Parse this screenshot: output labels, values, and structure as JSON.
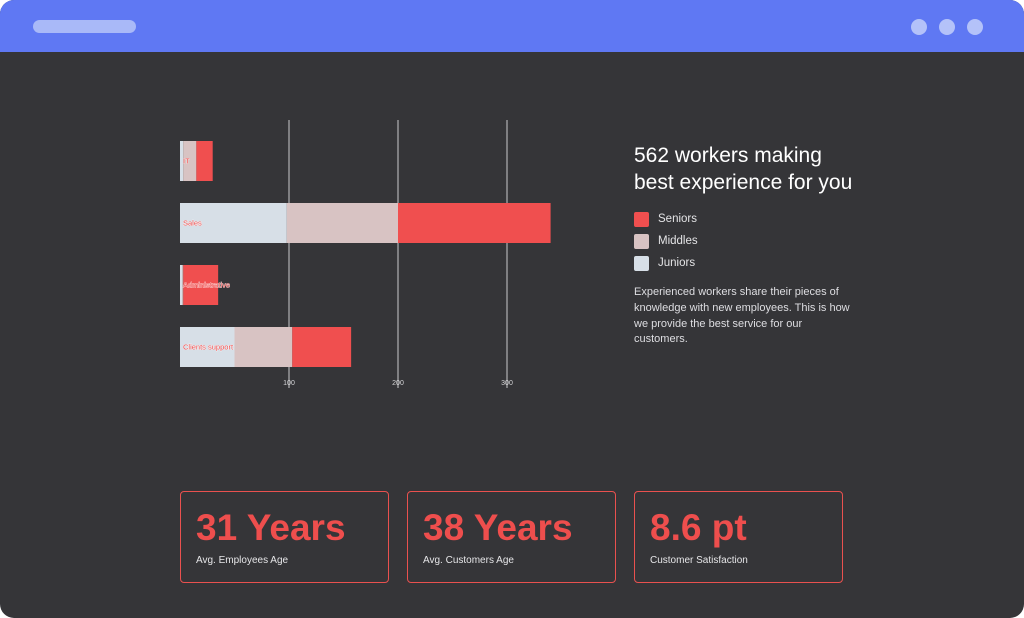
{
  "chart_data": {
    "type": "bar",
    "orientation": "horizontal",
    "stacked": true,
    "categories": [
      "IT",
      "Sales",
      "Administrative",
      "Clients support"
    ],
    "series": [
      {
        "name": "Juniors",
        "color": "#d7dfe7",
        "values": [
          3,
          98,
          2,
          50
        ]
      },
      {
        "name": "Middles",
        "color": "#d8c3c3",
        "values": [
          12,
          102,
          1,
          53
        ]
      },
      {
        "name": "Seniors",
        "color": "#f04f4f",
        "values": [
          15,
          140,
          32,
          54
        ]
      }
    ],
    "xticks": [
      100,
      200,
      300
    ],
    "xlim": [
      0,
      340
    ],
    "grid": true
  },
  "info": {
    "title": "562 workers making best experience for you",
    "description": "Experienced workers share their pieces of knowledge with new employees. This is how we provide the best service for our customers."
  },
  "legend": [
    {
      "label": "Seniors",
      "color": "#f04f4f"
    },
    {
      "label": "Middles",
      "color": "#d8c3c3"
    },
    {
      "label": "Juniors",
      "color": "#d7dfe7"
    }
  ],
  "stats": [
    {
      "value": "31 Years",
      "label": "Avg. Employees Age"
    },
    {
      "value": "38 Years",
      "label": "Avg. Customers Age"
    },
    {
      "value": "8.6 pt",
      "label": "Customer Satisfaction"
    }
  ]
}
